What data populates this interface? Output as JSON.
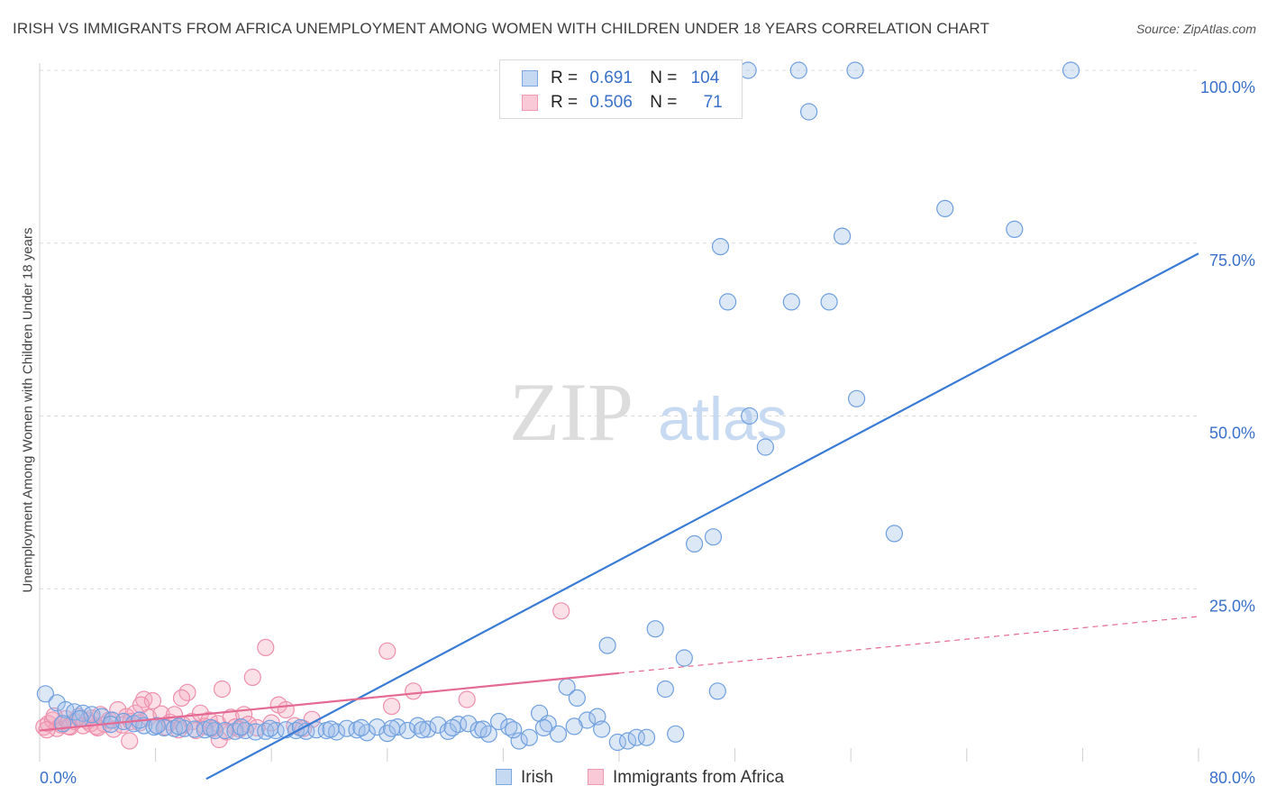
{
  "title": "IRISH VS IMMIGRANTS FROM AFRICA UNEMPLOYMENT AMONG WOMEN WITH CHILDREN UNDER 18 YEARS CORRELATION CHART",
  "source": "Source: ZipAtlas.com",
  "watermark": {
    "zip": "ZIP",
    "atlas": "atlas"
  },
  "legend": [
    {
      "name": "Irish",
      "r_label": "R =",
      "r_value": "0.691",
      "n_label": "N =",
      "n_value": "104",
      "color": "#9dbde9"
    },
    {
      "name": "Immigrants from Africa",
      "r_label": "R =",
      "r_value": "0.506",
      "n_label": "N =",
      "n_value": "71",
      "color": "#f4a7be"
    }
  ],
  "chart_data": {
    "type": "scatter",
    "title": "IRISH VS IMMIGRANTS FROM AFRICA UNEMPLOYMENT AMONG WOMEN WITH CHILDREN UNDER 18 YEARS CORRELATION CHART",
    "xlabel": "",
    "ylabel": "Unemployment Among Women with Children Under 18 years",
    "xlim": [
      0,
      80
    ],
    "ylim": [
      0,
      100
    ],
    "x_tick_labels": [
      "0.0%",
      "80.0%"
    ],
    "y_tick_labels": [
      "25.0%",
      "50.0%",
      "75.0%",
      "100.0%"
    ],
    "y_ticks": [
      25,
      50,
      75,
      100
    ],
    "grid": true,
    "legend_placement": "top-center",
    "series": [
      {
        "name": "Irish",
        "color": "#6f9fdf",
        "trend": {
          "x": [
            11.5,
            80
          ],
          "y": [
            -2.5,
            73.5
          ],
          "color": "#3a7bd5"
        },
        "points": [
          [
            0.4,
            9.8
          ],
          [
            1.2,
            8.5
          ],
          [
            1.8,
            7.5
          ],
          [
            2.4,
            7.2
          ],
          [
            3.0,
            7.0
          ],
          [
            3.6,
            6.8
          ],
          [
            4.3,
            6.5
          ],
          [
            5.0,
            6.0
          ],
          [
            5.8,
            5.8
          ],
          [
            6.5,
            5.5
          ],
          [
            7.2,
            5.2
          ],
          [
            7.9,
            5.0
          ],
          [
            8.6,
            4.9
          ],
          [
            9.3,
            4.8
          ],
          [
            10.0,
            4.8
          ],
          [
            10.7,
            4.7
          ],
          [
            11.4,
            4.6
          ],
          [
            12.1,
            4.5
          ],
          [
            12.8,
            4.5
          ],
          [
            13.5,
            4.4
          ],
          [
            14.2,
            4.5
          ],
          [
            14.9,
            4.3
          ],
          [
            15.6,
            4.4
          ],
          [
            16.3,
            4.5
          ],
          [
            17.0,
            4.6
          ],
          [
            17.7,
            4.5
          ],
          [
            18.4,
            4.4
          ],
          [
            19.1,
            4.6
          ],
          [
            19.8,
            4.5
          ],
          [
            20.5,
            4.3
          ],
          [
            21.2,
            4.8
          ],
          [
            21.9,
            4.6
          ],
          [
            22.6,
            4.2
          ],
          [
            23.3,
            5.0
          ],
          [
            24.0,
            4.1
          ],
          [
            24.7,
            5.0
          ],
          [
            25.4,
            4.5
          ],
          [
            26.1,
            5.2
          ],
          [
            26.8,
            4.7
          ],
          [
            27.5,
            5.3
          ],
          [
            28.2,
            4.4
          ],
          [
            28.9,
            5.4
          ],
          [
            29.6,
            5.5
          ],
          [
            30.3,
            4.6
          ],
          [
            31.0,
            4.0
          ],
          [
            31.7,
            5.8
          ],
          [
            32.4,
            5.0
          ],
          [
            33.1,
            3.0
          ],
          [
            33.8,
            3.5
          ],
          [
            34.5,
            7.0
          ],
          [
            35.1,
            5.5
          ],
          [
            35.8,
            4.0
          ],
          [
            36.4,
            10.8
          ],
          [
            37.1,
            9.2
          ],
          [
            37.8,
            6.0
          ],
          [
            38.5,
            6.5
          ],
          [
            39.2,
            16.8
          ],
          [
            39.9,
            2.8
          ],
          [
            40.6,
            3.0
          ],
          [
            41.2,
            3.5
          ],
          [
            41.9,
            3.5
          ],
          [
            42.5,
            19.2
          ],
          [
            43.2,
            10.5
          ],
          [
            43.9,
            4.0
          ],
          [
            44.5,
            15.0
          ],
          [
            45.2,
            31.5
          ],
          [
            46.5,
            32.5
          ],
          [
            46.8,
            10.2
          ],
          [
            47.5,
            66.5
          ],
          [
            47.0,
            74.5
          ],
          [
            49.0,
            50.0
          ],
          [
            48.9,
            100.0
          ],
          [
            50.1,
            45.5
          ],
          [
            51.9,
            66.5
          ],
          [
            52.4,
            100.0
          ],
          [
            53.1,
            94.0
          ],
          [
            54.5,
            66.5
          ],
          [
            55.4,
            76.0
          ],
          [
            56.3,
            100.0
          ],
          [
            56.4,
            52.5
          ],
          [
            59.0,
            33.0
          ],
          [
            62.5,
            80.0
          ],
          [
            67.3,
            77.0
          ],
          [
            71.2,
            100.0
          ],
          [
            1.6,
            5.5
          ],
          [
            2.8,
            6.2
          ],
          [
            4.9,
            5.4
          ],
          [
            6.9,
            6.0
          ],
          [
            8.1,
            5.2
          ],
          [
            9.6,
            5.1
          ],
          [
            11.8,
            4.9
          ],
          [
            13.9,
            5.0
          ],
          [
            15.9,
            4.8
          ],
          [
            18.0,
            4.9
          ],
          [
            20.1,
            4.7
          ],
          [
            22.2,
            4.9
          ],
          [
            24.3,
            4.8
          ],
          [
            26.4,
            4.6
          ],
          [
            28.5,
            4.9
          ],
          [
            30.6,
            4.7
          ],
          [
            32.7,
            4.6
          ],
          [
            34.8,
            4.9
          ],
          [
            36.9,
            5.1
          ],
          [
            38.8,
            4.7
          ]
        ]
      },
      {
        "name": "Immigrants from Africa",
        "color": "#ee8fac",
        "trend": {
          "x": [
            0,
            40
          ],
          "y": [
            4.5,
            12.8
          ],
          "color": "#e46a93"
        },
        "trend_dashed": {
          "x": [
            40,
            80
          ],
          "y": [
            12.8,
            21.0
          ],
          "color": "#e46a93"
        },
        "points": [
          [
            0.3,
            5.0
          ],
          [
            0.6,
            5.5
          ],
          [
            0.9,
            6.0
          ],
          [
            1.2,
            4.8
          ],
          [
            1.5,
            5.3
          ],
          [
            1.8,
            6.2
          ],
          [
            2.1,
            5.0
          ],
          [
            2.4,
            5.8
          ],
          [
            2.7,
            6.5
          ],
          [
            3.0,
            5.2
          ],
          [
            3.3,
            5.9
          ],
          [
            3.6,
            6.3
          ],
          [
            3.9,
            5.1
          ],
          [
            4.2,
            6.8
          ],
          [
            4.5,
            5.4
          ],
          [
            4.8,
            6.0
          ],
          [
            5.1,
            4.7
          ],
          [
            5.4,
            7.5
          ],
          [
            5.7,
            5.3
          ],
          [
            6.0,
            6.5
          ],
          [
            6.3,
            5.8
          ],
          [
            6.6,
            7.0
          ],
          [
            6.9,
            5.6
          ],
          [
            7.2,
            9.0
          ],
          [
            7.5,
            6.4
          ],
          [
            7.8,
            8.8
          ],
          [
            8.1,
            5.2
          ],
          [
            8.4,
            6.9
          ],
          [
            8.7,
            5.0
          ],
          [
            9.0,
            5.7
          ],
          [
            9.3,
            6.8
          ],
          [
            9.6,
            4.6
          ],
          [
            9.9,
            5.3
          ],
          [
            10.2,
            10.0
          ],
          [
            10.5,
            5.8
          ],
          [
            10.8,
            4.5
          ],
          [
            11.1,
            7.0
          ],
          [
            11.4,
            5.1
          ],
          [
            11.7,
            6.0
          ],
          [
            12.0,
            4.8
          ],
          [
            12.3,
            5.5
          ],
          [
            12.6,
            10.5
          ],
          [
            12.9,
            4.3
          ],
          [
            13.2,
            6.4
          ],
          [
            13.5,
            5.0
          ],
          [
            13.8,
            4.7
          ],
          [
            14.1,
            6.8
          ],
          [
            14.4,
            5.4
          ],
          [
            14.7,
            12.2
          ],
          [
            15.0,
            4.9
          ],
          [
            15.6,
            16.5
          ],
          [
            16.0,
            5.6
          ],
          [
            16.5,
            8.2
          ],
          [
            17.0,
            7.5
          ],
          [
            17.6,
            5.2
          ],
          [
            18.2,
            4.8
          ],
          [
            18.8,
            6.1
          ],
          [
            24.0,
            16.0
          ],
          [
            24.3,
            8.0
          ],
          [
            25.8,
            10.2
          ],
          [
            29.5,
            9.0
          ],
          [
            36.0,
            21.8
          ],
          [
            6.2,
            3.0
          ],
          [
            12.4,
            3.2
          ],
          [
            3.5,
            5.5
          ],
          [
            7.0,
            8.2
          ],
          [
            9.8,
            9.2
          ],
          [
            0.5,
            4.6
          ],
          [
            1.0,
            6.6
          ],
          [
            2.0,
            5.1
          ],
          [
            4.0,
            4.9
          ]
        ]
      }
    ]
  }
}
